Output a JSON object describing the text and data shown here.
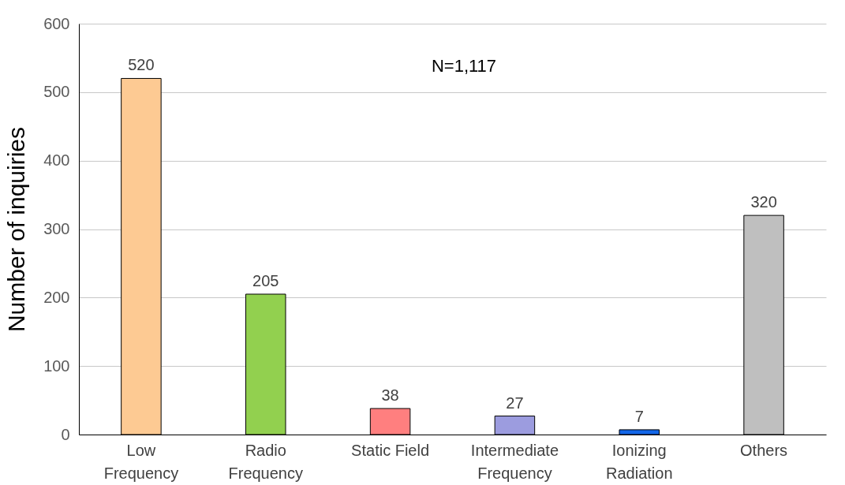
{
  "chart_data": {
    "type": "bar",
    "ylabel": "Number of inquiries",
    "categories": [
      "Low Frequency",
      "Radio Frequency",
      "Static Field",
      "Intermediate Frequency",
      "Ionizing Radiation",
      "Others"
    ],
    "values": [
      520,
      205,
      38,
      27,
      7,
      320
    ],
    "colors": [
      "#fdca93",
      "#92d04f",
      "#ff7f7f",
      "#9c9cdf",
      "#1366e8",
      "#bfbfbf"
    ],
    "ylim": [
      0,
      600
    ],
    "yticks": [
      0,
      100,
      200,
      300,
      400,
      500,
      600
    ],
    "grid": "y",
    "data_labels": true,
    "annotations": [
      "N=1,117"
    ]
  }
}
